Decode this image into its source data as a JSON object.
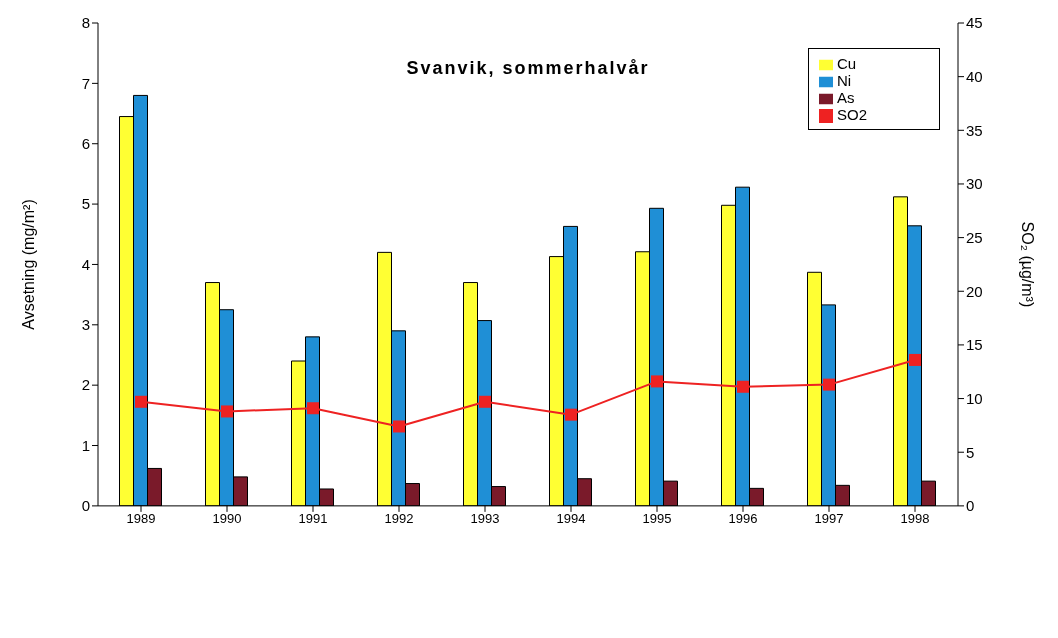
{
  "chart_data": {
    "type": "bar",
    "title": "Svanvik, sommerhalvår",
    "categories": [
      "1989",
      "1990",
      "1991",
      "1992",
      "1993",
      "1994",
      "1995",
      "1996",
      "1997",
      "1998"
    ],
    "series": [
      {
        "name": "Cu",
        "color": "#ffff33",
        "values": [
          6.45,
          3.7,
          2.4,
          4.2,
          3.7,
          4.13,
          4.21,
          4.98,
          3.87,
          5.12
        ]
      },
      {
        "name": "Ni",
        "color": "#1f8fd6",
        "values": [
          6.8,
          3.25,
          2.8,
          2.9,
          3.07,
          4.63,
          4.93,
          5.28,
          3.33,
          4.64
        ]
      },
      {
        "name": "As",
        "color": "#7a1a2a",
        "values": [
          0.62,
          0.48,
          0.28,
          0.37,
          0.32,
          0.45,
          0.41,
          0.29,
          0.34,
          0.41
        ]
      },
      {
        "name": "SO2",
        "type": "line",
        "axis": "y2",
        "color": "#ee2222",
        "marker": "square",
        "values": [
          9.7,
          8.8,
          9.1,
          7.4,
          9.7,
          8.5,
          11.6,
          11.1,
          11.3,
          13.6
        ]
      }
    ],
    "ylabel": "Avsetning (mg/m²)",
    "y2label": "SO₂ (µg/m³)",
    "ylim": [
      0,
      8
    ],
    "yticks": [
      0,
      1,
      2,
      3,
      4,
      5,
      6,
      7,
      8
    ],
    "y2lim": [
      0,
      45
    ],
    "y2ticks": [
      0,
      5,
      10,
      15,
      20,
      25,
      30,
      35,
      40,
      45
    ],
    "grid": false,
    "legend": "top right"
  }
}
